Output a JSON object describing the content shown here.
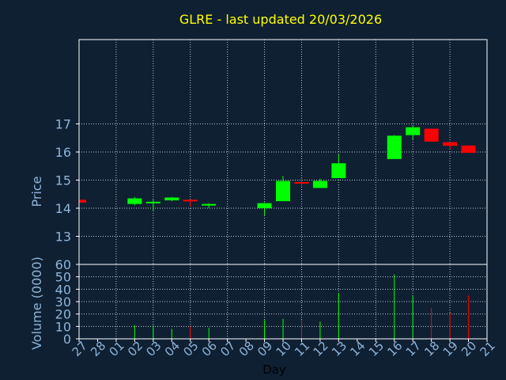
{
  "colors": {
    "background": "#0f2033",
    "title": "#ffff00",
    "axis_text": "#8fb4d8",
    "frame": "#ffffff",
    "grid": "#ffffff",
    "up": "#00ff00",
    "down": "#ff0000",
    "xlabel": "#000000"
  },
  "chart_data": {
    "type": "candlestick",
    "title": "GLRE - last updated 20/03/2026",
    "xlabel": "Day",
    "price_panel": {
      "ylabel": "Price",
      "ylim": [
        12,
        20
      ],
      "yticks": [
        13,
        14,
        15,
        16,
        17
      ]
    },
    "volume_panel": {
      "ylabel": "Volume (0000)",
      "ylim": [
        0,
        60
      ],
      "yticks": [
        0,
        10,
        20,
        30,
        40,
        50,
        60
      ]
    },
    "days": [
      "27",
      "28",
      "01",
      "02",
      "03",
      "04",
      "05",
      "06",
      "07",
      "08",
      "09",
      "10",
      "11",
      "12",
      "13",
      "14",
      "15",
      "16",
      "17",
      "18",
      "19",
      "20",
      "21"
    ],
    "candles": [
      {
        "day": "27",
        "open": 14.3,
        "high": 14.3,
        "low": 14.2,
        "close": 14.2,
        "volume": 0
      },
      {
        "day": "02",
        "open": 14.15,
        "high": 14.4,
        "low": 14.1,
        "close": 14.35,
        "volume": 11
      },
      {
        "day": "03",
        "open": 14.2,
        "high": 14.3,
        "low": 13.9,
        "close": 14.23,
        "volume": 11
      },
      {
        "day": "04",
        "open": 14.28,
        "high": 14.4,
        "low": 14.25,
        "close": 14.38,
        "volume": 8
      },
      {
        "day": "05",
        "open": 14.3,
        "high": 14.3,
        "low": 14.05,
        "close": 14.25,
        "volume": 10
      },
      {
        "day": "06",
        "open": 14.1,
        "high": 14.18,
        "low": 14.0,
        "close": 14.15,
        "volume": 9
      },
      {
        "day": "09",
        "open": 14.0,
        "high": 14.2,
        "low": 13.75,
        "close": 14.18,
        "volume": 15
      },
      {
        "day": "10",
        "open": 14.25,
        "high": 15.15,
        "low": 14.25,
        "close": 14.97,
        "volume": 16
      },
      {
        "day": "11",
        "open": 14.93,
        "high": 15.05,
        "low": 14.75,
        "close": 14.88,
        "volume": 15
      },
      {
        "day": "12",
        "open": 14.72,
        "high": 15.05,
        "low": 14.72,
        "close": 14.97,
        "volume": 14
      },
      {
        "day": "13",
        "open": 15.07,
        "high": 15.92,
        "low": 15.07,
        "close": 15.6,
        "volume": 37
      },
      {
        "day": "16",
        "open": 15.75,
        "high": 16.6,
        "low": 15.75,
        "close": 16.58,
        "volume": 52
      },
      {
        "day": "17",
        "open": 16.6,
        "high": 16.95,
        "low": 16.45,
        "close": 16.88,
        "volume": 35
      },
      {
        "day": "18",
        "open": 16.83,
        "high": 16.83,
        "low": 16.37,
        "close": 16.37,
        "volume": 25
      },
      {
        "day": "19",
        "open": 16.35,
        "high": 16.35,
        "low": 16.1,
        "close": 16.22,
        "volume": 21
      },
      {
        "day": "20",
        "open": 16.23,
        "high": 16.23,
        "low": 15.97,
        "close": 15.97,
        "volume": 35
      }
    ],
    "grid": true
  }
}
